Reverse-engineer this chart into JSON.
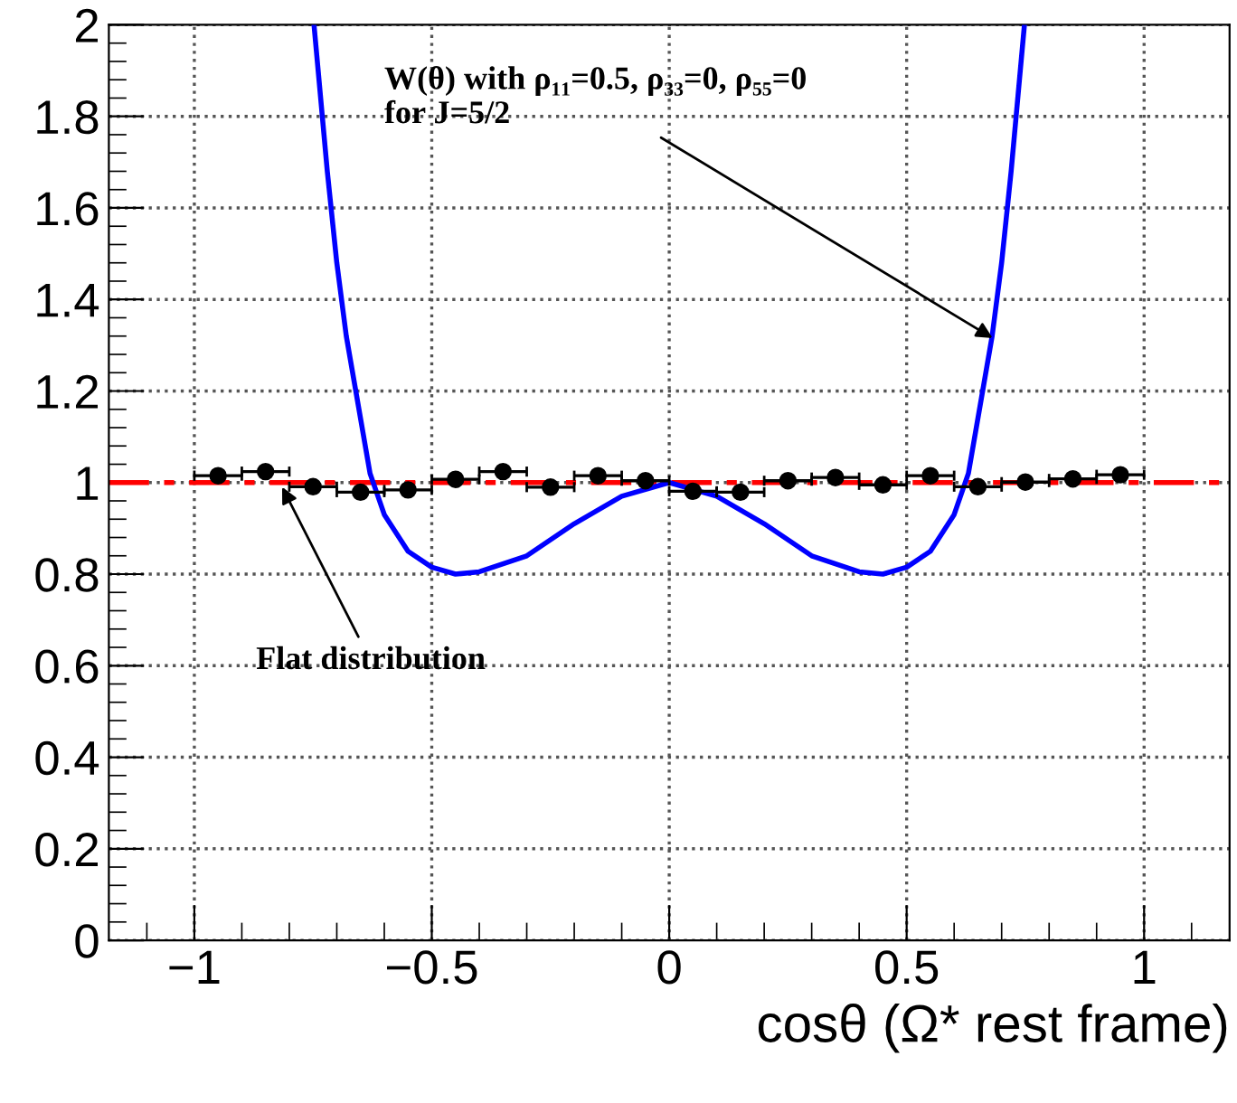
{
  "chart_data": {
    "type": "scatter",
    "xlabel": "cosθ (Ω* rest frame)",
    "xlim": [
      -1.18,
      1.18
    ],
    "ylim": [
      0,
      2
    ],
    "xticks": [
      {
        "value": -1,
        "label": "−1"
      },
      {
        "value": -0.5,
        "label": "−0.5"
      },
      0,
      0.5,
      1
    ],
    "yticks": [
      0,
      0.2,
      0.4,
      0.6,
      0.8,
      1,
      1.2,
      1.4,
      1.6,
      1.8,
      2
    ],
    "grid": true,
    "legend": false,
    "series": [
      {
        "color": "#000000",
        "marker": "circle",
        "x": [
          -0.95,
          -0.85,
          -0.75,
          -0.65,
          -0.55,
          -0.45,
          -0.35,
          -0.25,
          -0.15,
          -0.05,
          0.05,
          0.15,
          0.25,
          0.35,
          0.45,
          0.55,
          0.65,
          0.75,
          0.85,
          0.95
        ],
        "values": [
          1.015,
          1.024,
          0.991,
          0.979,
          0.984,
          1.007,
          1.024,
          0.99,
          1.015,
          1.004,
          0.981,
          0.979,
          1.004,
          1.011,
          0.995,
          1.015,
          0.991,
          1.001,
          1.008,
          1.017
        ],
        "xerrors": [
          0.05,
          0.05,
          0.05,
          0.05,
          0.05,
          0.05,
          0.05,
          0.05,
          0.05,
          0.05,
          0.05,
          0.05,
          0.05,
          0.05,
          0.05,
          0.05,
          0.05,
          0.05,
          0.05,
          0.05
        ]
      },
      {
        "type": "line",
        "color": "#0000ff",
        "marker": "none",
        "line_style": "solid",
        "x": [
          -0.748,
          -0.72,
          -0.7,
          -0.68,
          -0.66,
          -0.63,
          -0.6,
          -0.55,
          -0.5,
          -0.45,
          -0.4,
          -0.3,
          -0.2,
          -0.1,
          0,
          0.1,
          0.2,
          0.3,
          0.4,
          0.45,
          0.5,
          0.55,
          0.6,
          0.63,
          0.66,
          0.68,
          0.7,
          0.72,
          0.748
        ],
        "values": [
          2.0,
          1.68,
          1.48,
          1.32,
          1.2,
          1.02,
          0.93,
          0.85,
          0.815,
          0.8,
          0.805,
          0.84,
          0.91,
          0.97,
          1.0,
          0.97,
          0.91,
          0.84,
          0.805,
          0.8,
          0.815,
          0.85,
          0.93,
          1.02,
          1.2,
          1.32,
          1.48,
          1.68,
          2.0
        ]
      }
    ],
    "ref_lines": [
      {
        "axis": "y",
        "value": 1,
        "color": "#ff0000",
        "line_style": "dashed"
      }
    ],
    "annotations": [
      {
        "text": "W(θ) with ρ₁₁=0.5, ρ₃₃=0, ρ₅₅=0\nfor J=5/2",
        "x": 0.69,
        "y": 1.31
      },
      {
        "text": "Flat distribution",
        "x": -0.82,
        "y": 1
      }
    ]
  }
}
